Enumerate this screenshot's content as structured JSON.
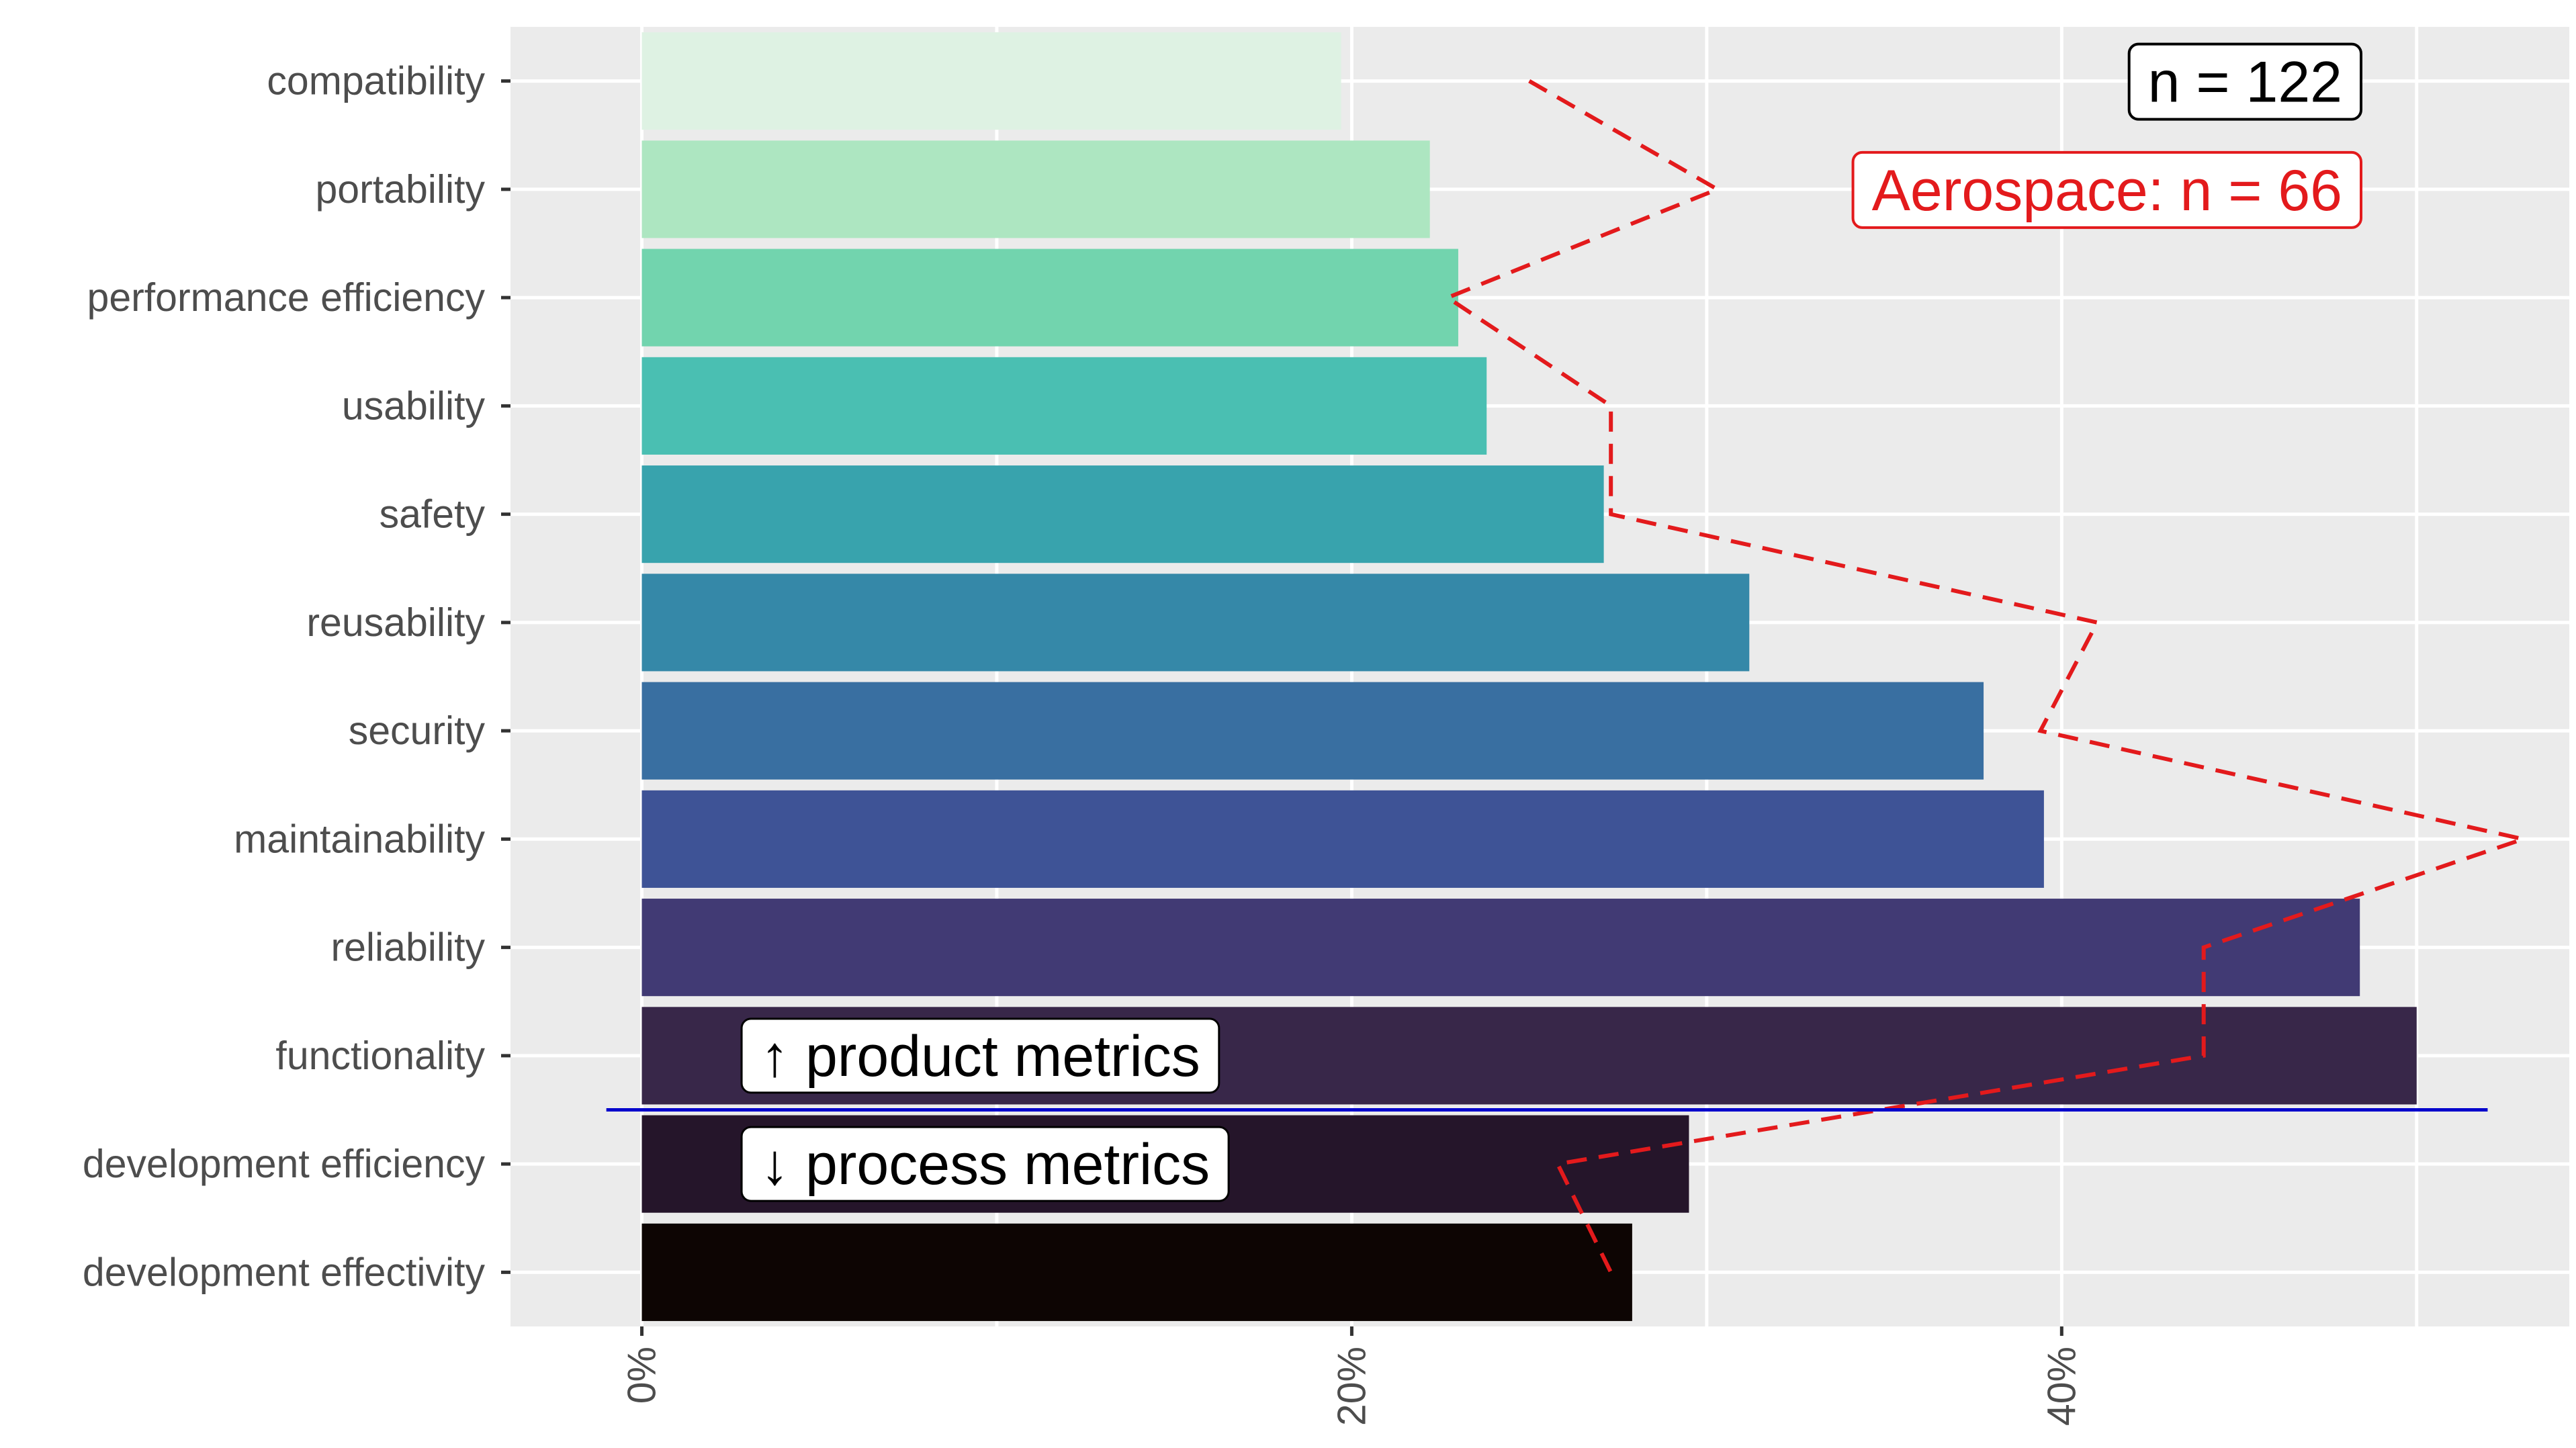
{
  "chart_data": {
    "type": "bar",
    "orientation": "horizontal",
    "categories": [
      "compatibility",
      "portability",
      "performance efficiency",
      "usability",
      "safety",
      "reusability",
      "security",
      "maintainability",
      "reliability",
      "functionality",
      "development efficiency",
      "development effectivity"
    ],
    "values": [
      19.7,
      22.2,
      23.0,
      23.8,
      27.1,
      31.2,
      37.8,
      39.5,
      48.4,
      50.0,
      29.5,
      27.9
    ],
    "bar_colors": [
      "#def2e3",
      "#ade6c1",
      "#72d4ae",
      "#4abfb2",
      "#38a3ad",
      "#3588a8",
      "#396fa1",
      "#3e5396",
      "#413a74",
      "#382749",
      "#25152a",
      "#0d0503"
    ],
    "overlay_line": {
      "style": "dashed",
      "color": "#e31a1c",
      "values": [
        25.0,
        30.3,
        22.7,
        27.3,
        27.3,
        41.0,
        39.4,
        53.0,
        44.0,
        44.0,
        25.8,
        27.3
      ]
    },
    "xlim": [
      -3.7,
      54.3
    ],
    "x_ticks": [
      0,
      20,
      40
    ],
    "x_tick_labels": [
      "0%",
      "20%",
      "40%"
    ],
    "x_gridlines": [
      0,
      10,
      20,
      30,
      40,
      50
    ],
    "grid": true,
    "separator": {
      "between": [
        "functionality",
        "development efficiency"
      ],
      "color": "#0000cc",
      "from": -1,
      "to": 52
    },
    "annotations": [
      {
        "text": "↑ product metrics",
        "category": "functionality",
        "x": 3
      },
      {
        "text": "↓ process metrics",
        "category": "development efficiency",
        "x": 3
      }
    ],
    "legend_boxes": [
      {
        "text": "n = 122",
        "color": "#000000",
        "position": "top-right"
      },
      {
        "text": "Aerospace: n = 66",
        "color": "#e31a1c",
        "position": "top-right"
      }
    ],
    "colors": {
      "panel": "#ebebeb",
      "grid_major": "#ffffff",
      "grid_minor": "#f5f5f5",
      "tick_text": "#4d4d4d",
      "tick_mark": "#333333"
    }
  }
}
